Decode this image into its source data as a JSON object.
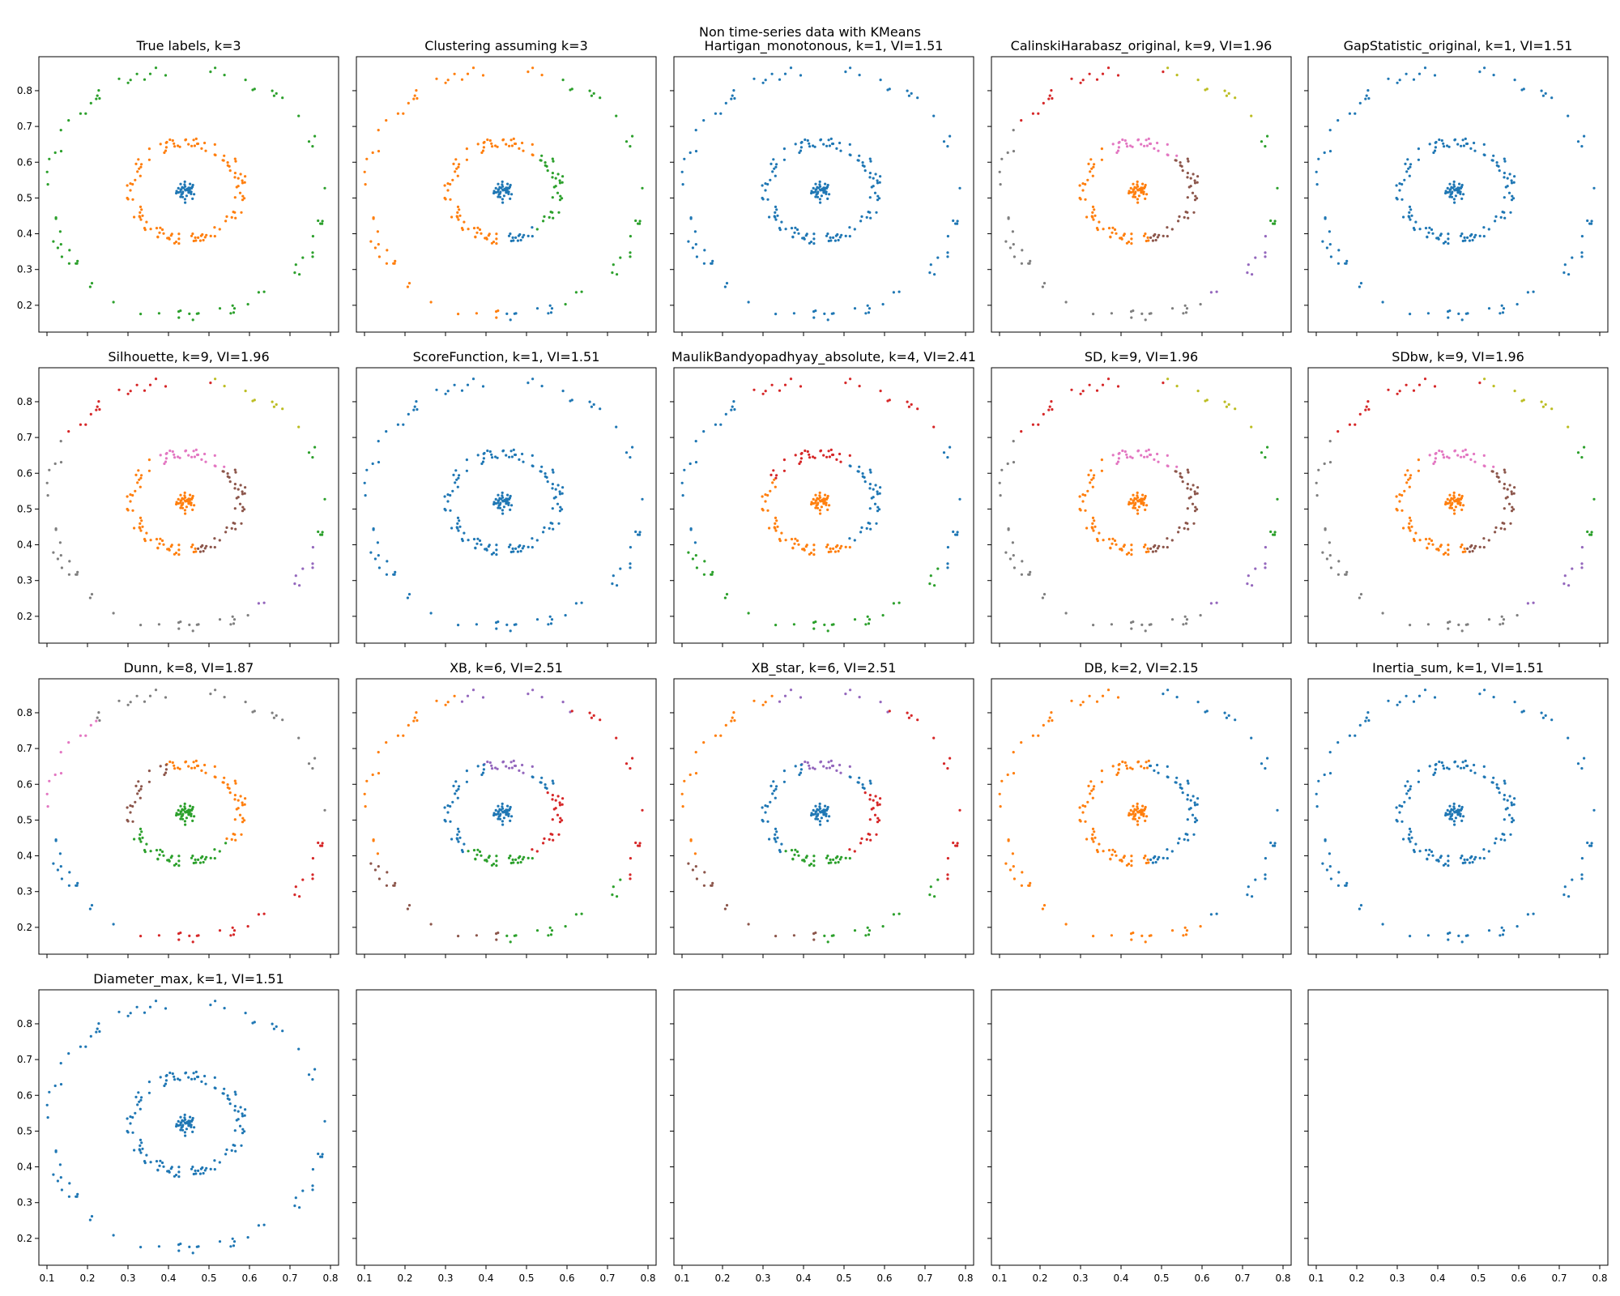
{
  "figure": {
    "suptitle": "Non time-series data with KMeans",
    "palette": [
      "#1f77b4",
      "#ff7f0e",
      "#2ca02c",
      "#d62728",
      "#9467bd",
      "#8c564b",
      "#e377c2",
      "#7f7f7f",
      "#bcbd22",
      "#17becf"
    ]
  },
  "chart_data": {
    "type": "scatter",
    "grid": false,
    "xlim": [
      0.08,
      0.82
    ],
    "ylim": [
      0.125,
      0.895
    ],
    "xticks": [
      "0.1",
      "0.2",
      "0.3",
      "0.4",
      "0.5",
      "0.6",
      "0.7",
      "0.8"
    ],
    "yticks": [
      "0.2",
      "0.3",
      "0.4",
      "0.5",
      "0.6",
      "0.7",
      "0.8"
    ],
    "dataset": {
      "clusters": [
        {
          "center": [
            0.445,
            0.52
          ],
          "spread": 0.025,
          "points": 40
        },
        {
          "center": [
            0.445,
            0.52
          ],
          "radius": 0.135,
          "points": 120
        },
        {
          "center": [
            0.445,
            0.515
          ],
          "radius": 0.345,
          "points": 80
        }
      ]
    },
    "panels": [
      {
        "title": "True labels, k=3",
        "coloring": "true_labels"
      },
      {
        "title": "Clustering assuming k=3",
        "coloring": "kmeans_k3"
      },
      {
        "title": "Hartigan_monotonous, k=1, VI=1.51",
        "coloring": "single"
      },
      {
        "title": "CalinskiHarabasz_original, k=9, VI=1.96",
        "coloring": "k9"
      },
      {
        "title": "GapStatistic_original, k=1, VI=1.51",
        "coloring": "single"
      },
      {
        "title": "Silhouette, k=9, VI=1.96",
        "coloring": "k9"
      },
      {
        "title": "ScoreFunction, k=1, VI=1.51",
        "coloring": "single"
      },
      {
        "title": "MaulikBandyopadhyay_absolute, k=4, VI=2.41",
        "coloring": "k4"
      },
      {
        "title": "SD, k=9, VI=1.96",
        "coloring": "k9"
      },
      {
        "title": "SDbw, k=9, VI=1.96",
        "coloring": "k9"
      },
      {
        "title": "Dunn, k=8, VI=1.87",
        "coloring": "k8"
      },
      {
        "title": "XB, k=6, VI=2.51",
        "coloring": "k6"
      },
      {
        "title": "XB_star, k=6, VI=2.51",
        "coloring": "k6"
      },
      {
        "title": "DB, k=2, VI=2.15",
        "coloring": "k2"
      },
      {
        "title": "Inertia_sum, k=1, VI=1.51",
        "coloring": "single"
      },
      {
        "title": "Diameter_max, k=1, VI=1.51",
        "coloring": "single"
      },
      {
        "title": "",
        "coloring": "empty"
      },
      {
        "title": "",
        "coloring": "empty"
      },
      {
        "title": "",
        "coloring": "empty"
      },
      {
        "title": "",
        "coloring": "empty"
      }
    ]
  }
}
